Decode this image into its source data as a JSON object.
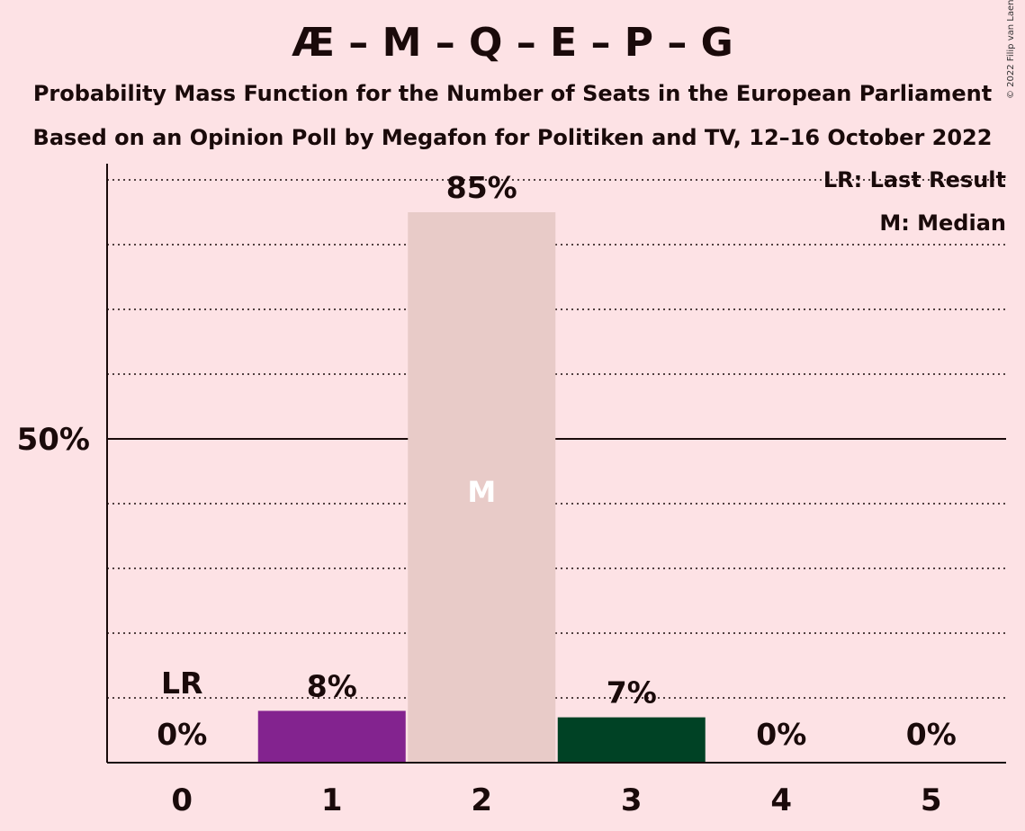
{
  "title": "Æ – M – Q – E – P – G",
  "subtitle_1": "Probability Mass Function for the Number of Seats in the European Parliament",
  "subtitle_2": "Based on an Opinion Poll by Megafon for Politiken and TV, 12–16 October 2022",
  "copyright": "© 2022 Filip van Laenen",
  "legend": {
    "last_result": "LR: Last Result",
    "median": "M: Median"
  },
  "chart_data": {
    "type": "bar",
    "categories": [
      "0",
      "1",
      "2",
      "3",
      "4",
      "5"
    ],
    "values": [
      0,
      8,
      85,
      7,
      0,
      0
    ],
    "value_labels": [
      "0%",
      "8%",
      "85%",
      "7%",
      "0%",
      "0%"
    ],
    "bar_colors": [
      "#e8cbc8",
      "#83238f",
      "#e8cbc8",
      "#004225",
      "#e8cbc8",
      "#e8cbc8"
    ],
    "ylim": [
      0,
      100
    ],
    "y_ticks": [
      {
        "value": 50,
        "label": "50%"
      }
    ],
    "gridlines_dotted_every": 10,
    "last_result_category": "0",
    "last_result_marker": "LR",
    "median_category": "2",
    "median_marker": "M",
    "legend_position": "top-right"
  }
}
